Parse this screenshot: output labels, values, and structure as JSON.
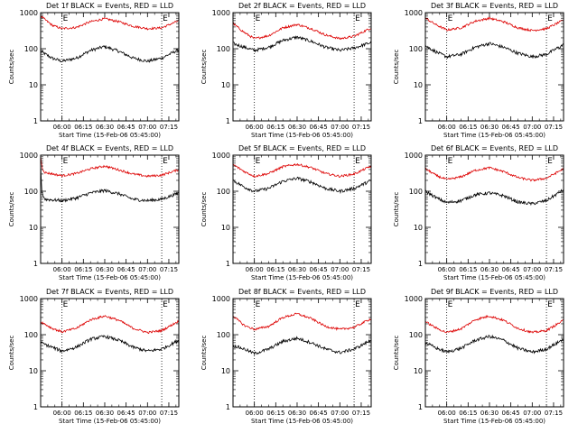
{
  "colors": {
    "events": "#000000",
    "lld": "#dd0000",
    "axes": "#000000",
    "background": "#ffffff"
  },
  "shared": {
    "ylabel": "Counts/sec",
    "xlabel": "Start Time (15-Feb-06 05:45:00)",
    "x_tick_labels": [
      "06:00",
      "06:15",
      "06:30",
      "06:45",
      "07:00",
      "07:15"
    ],
    "x_ticks_min": [
      15,
      30,
      45,
      60,
      75,
      90
    ],
    "xlim_min": [
      0,
      97
    ],
    "y_tick_labels": [
      "1",
      "10",
      "100",
      "1000"
    ],
    "y_tick_values": [
      1,
      10,
      100,
      1000
    ],
    "ylim": [
      1,
      1000
    ],
    "yscale": "log",
    "grid": false,
    "marker_E": "E",
    "dotted_lines_min": [
      15,
      85
    ]
  },
  "chart_data": [
    {
      "type": "line",
      "title": "Det 1f BLACK = Events, RED = LLD",
      "series": [
        {
          "key": "events",
          "values": [
            [
              0,
              85
            ],
            [
              8,
              55
            ],
            [
              15,
              45
            ],
            [
              25,
              55
            ],
            [
              35,
              90
            ],
            [
              45,
              115
            ],
            [
              55,
              85
            ],
            [
              65,
              55
            ],
            [
              75,
              45
            ],
            [
              85,
              55
            ],
            [
              97,
              95
            ]
          ]
        },
        {
          "key": "lld",
          "values": [
            [
              0,
              800
            ],
            [
              8,
              450
            ],
            [
              15,
              360
            ],
            [
              25,
              390
            ],
            [
              35,
              560
            ],
            [
              45,
              680
            ],
            [
              55,
              560
            ],
            [
              65,
              420
            ],
            [
              75,
              360
            ],
            [
              85,
              380
            ],
            [
              97,
              600
            ]
          ]
        }
      ]
    },
    {
      "type": "line",
      "title": "Det 2f BLACK = Events, RED = LLD",
      "series": [
        {
          "key": "events",
          "values": [
            [
              0,
              140
            ],
            [
              8,
              110
            ],
            [
              15,
              90
            ],
            [
              25,
              110
            ],
            [
              35,
              170
            ],
            [
              45,
              210
            ],
            [
              55,
              160
            ],
            [
              65,
              110
            ],
            [
              75,
              90
            ],
            [
              85,
              105
            ],
            [
              97,
              150
            ]
          ]
        },
        {
          "key": "lld",
          "values": [
            [
              0,
              500
            ],
            [
              8,
              280
            ],
            [
              15,
              190
            ],
            [
              25,
              230
            ],
            [
              35,
              380
            ],
            [
              45,
              470
            ],
            [
              55,
              360
            ],
            [
              65,
              240
            ],
            [
              75,
              190
            ],
            [
              85,
              220
            ],
            [
              97,
              380
            ]
          ]
        }
      ]
    },
    {
      "type": "line",
      "title": "Det 3f BLACK = Events, RED = LLD",
      "series": [
        {
          "key": "events",
          "values": [
            [
              0,
              120
            ],
            [
              8,
              80
            ],
            [
              15,
              60
            ],
            [
              25,
              70
            ],
            [
              35,
              110
            ],
            [
              45,
              140
            ],
            [
              55,
              110
            ],
            [
              65,
              75
            ],
            [
              75,
              60
            ],
            [
              85,
              70
            ],
            [
              97,
              130
            ]
          ]
        },
        {
          "key": "lld",
          "values": [
            [
              0,
              700
            ],
            [
              8,
              450
            ],
            [
              15,
              330
            ],
            [
              25,
              380
            ],
            [
              35,
              580
            ],
            [
              45,
              700
            ],
            [
              55,
              560
            ],
            [
              65,
              380
            ],
            [
              75,
              320
            ],
            [
              85,
              360
            ],
            [
              97,
              620
            ]
          ]
        }
      ]
    },
    {
      "type": "line",
      "title": "Det 4f BLACK = Events, RED = LLD",
      "series": [
        {
          "key": "events",
          "values": [
            [
              0,
              600
            ],
            [
              0.4,
              200
            ],
            [
              1,
              90
            ],
            [
              3,
              60
            ],
            [
              15,
              55
            ],
            [
              25,
              65
            ],
            [
              35,
              90
            ],
            [
              45,
              105
            ],
            [
              55,
              85
            ],
            [
              65,
              60
            ],
            [
              75,
              55
            ],
            [
              85,
              60
            ],
            [
              97,
              90
            ]
          ]
        },
        {
          "key": "lld",
          "values": [
            [
              0,
              1000
            ],
            [
              0.4,
              700
            ],
            [
              1,
              450
            ],
            [
              3,
              330
            ],
            [
              15,
              270
            ],
            [
              25,
              310
            ],
            [
              35,
              420
            ],
            [
              45,
              500
            ],
            [
              55,
              390
            ],
            [
              65,
              300
            ],
            [
              75,
              260
            ],
            [
              85,
              280
            ],
            [
              97,
              400
            ]
          ]
        }
      ]
    },
    {
      "type": "line",
      "title": "Det 5f BLACK = Events, RED = LLD",
      "series": [
        {
          "key": "events",
          "values": [
            [
              0,
              200
            ],
            [
              8,
              130
            ],
            [
              15,
              100
            ],
            [
              25,
              120
            ],
            [
              35,
              190
            ],
            [
              45,
              230
            ],
            [
              55,
              180
            ],
            [
              65,
              120
            ],
            [
              75,
              100
            ],
            [
              85,
              120
            ],
            [
              97,
              200
            ]
          ]
        },
        {
          "key": "lld",
          "values": [
            [
              0,
              550
            ],
            [
              8,
              350
            ],
            [
              15,
              260
            ],
            [
              25,
              310
            ],
            [
              35,
              480
            ],
            [
              45,
              560
            ],
            [
              55,
              450
            ],
            [
              65,
              310
            ],
            [
              75,
              260
            ],
            [
              85,
              300
            ],
            [
              97,
              500
            ]
          ]
        }
      ]
    },
    {
      "type": "line",
      "title": "Det 6f BLACK = Events, RED = LLD",
      "series": [
        {
          "key": "events",
          "values": [
            [
              0,
              100
            ],
            [
              8,
              65
            ],
            [
              15,
              48
            ],
            [
              25,
              55
            ],
            [
              35,
              80
            ],
            [
              45,
              90
            ],
            [
              55,
              75
            ],
            [
              65,
              50
            ],
            [
              75,
              45
            ],
            [
              85,
              55
            ],
            [
              97,
              110
            ]
          ]
        },
        {
          "key": "lld",
          "values": [
            [
              0,
              420
            ],
            [
              8,
              270
            ],
            [
              15,
              210
            ],
            [
              25,
              250
            ],
            [
              35,
              380
            ],
            [
              45,
              450
            ],
            [
              55,
              350
            ],
            [
              65,
              240
            ],
            [
              75,
              200
            ],
            [
              85,
              230
            ],
            [
              97,
              420
            ]
          ]
        }
      ]
    },
    {
      "type": "line",
      "title": "Det 7f BLACK = Events, RED = LLD",
      "series": [
        {
          "key": "events",
          "values": [
            [
              0,
              60
            ],
            [
              8,
              45
            ],
            [
              15,
              35
            ],
            [
              25,
              45
            ],
            [
              35,
              75
            ],
            [
              45,
              90
            ],
            [
              55,
              70
            ],
            [
              65,
              45
            ],
            [
              75,
              35
            ],
            [
              85,
              40
            ],
            [
              97,
              70
            ]
          ]
        },
        {
          "key": "lld",
          "values": [
            [
              0,
              230
            ],
            [
              8,
              150
            ],
            [
              15,
              120
            ],
            [
              25,
              150
            ],
            [
              35,
              260
            ],
            [
              45,
              330
            ],
            [
              55,
              250
            ],
            [
              65,
              150
            ],
            [
              75,
              115
            ],
            [
              85,
              130
            ],
            [
              97,
              240
            ]
          ]
        }
      ]
    },
    {
      "type": "line",
      "title": "Det 8f BLACK = Events, RED = LLD",
      "series": [
        {
          "key": "events",
          "values": [
            [
              0,
              50
            ],
            [
              8,
              40
            ],
            [
              15,
              30
            ],
            [
              25,
              40
            ],
            [
              35,
              65
            ],
            [
              45,
              80
            ],
            [
              55,
              60
            ],
            [
              65,
              40
            ],
            [
              75,
              32
            ],
            [
              85,
              40
            ],
            [
              97,
              70
            ]
          ]
        },
        {
          "key": "lld",
          "values": [
            [
              0,
              330
            ],
            [
              8,
              180
            ],
            [
              15,
              140
            ],
            [
              25,
              170
            ],
            [
              35,
              300
            ],
            [
              45,
              380
            ],
            [
              55,
              280
            ],
            [
              65,
              170
            ],
            [
              75,
              140
            ],
            [
              85,
              160
            ],
            [
              97,
              280
            ]
          ]
        }
      ]
    },
    {
      "type": "line",
      "title": "Det 9f BLACK = Events, RED = LLD",
      "series": [
        {
          "key": "events",
          "values": [
            [
              0,
              60
            ],
            [
              8,
              42
            ],
            [
              15,
              33
            ],
            [
              25,
              42
            ],
            [
              35,
              70
            ],
            [
              45,
              90
            ],
            [
              55,
              70
            ],
            [
              65,
              42
            ],
            [
              75,
              33
            ],
            [
              85,
              40
            ],
            [
              97,
              75
            ]
          ]
        },
        {
          "key": "lld",
          "values": [
            [
              0,
              230
            ],
            [
              8,
              150
            ],
            [
              15,
              115
            ],
            [
              25,
              145
            ],
            [
              35,
              260
            ],
            [
              45,
              330
            ],
            [
              55,
              250
            ],
            [
              65,
              150
            ],
            [
              75,
              115
            ],
            [
              85,
              130
            ],
            [
              97,
              250
            ]
          ]
        }
      ]
    }
  ]
}
